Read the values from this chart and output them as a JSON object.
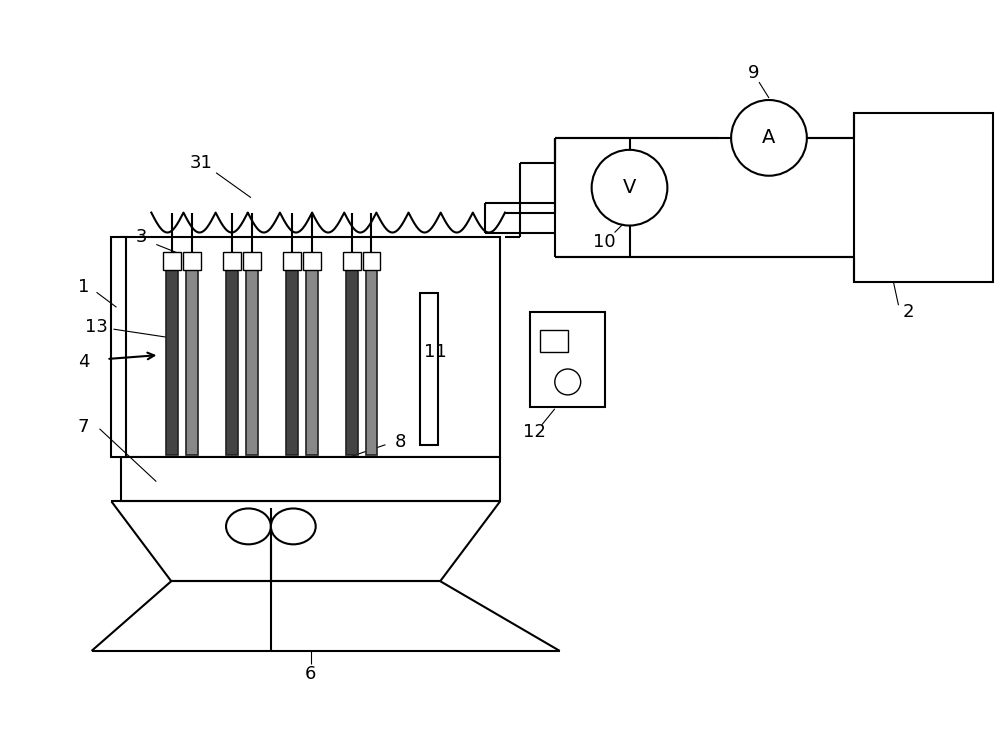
{
  "bg_color": "#ffffff",
  "lw": 1.5,
  "figsize": [
    10.0,
    7.37
  ],
  "dpi": 100,
  "label_color": "#000000",
  "label_fontsize": 13
}
